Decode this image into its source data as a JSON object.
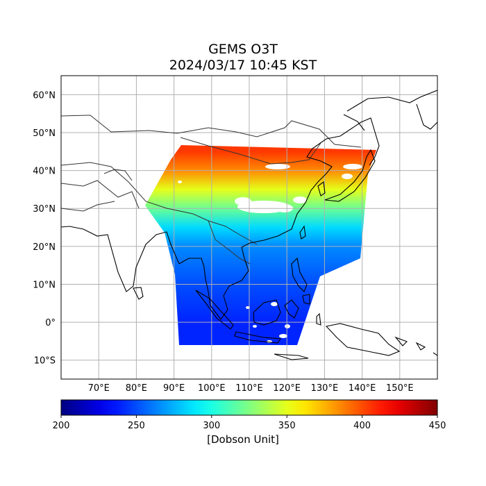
{
  "title": "GEMS O3T",
  "subtitle": "2024/03/17 10:45 KST",
  "map": {
    "lon_range": [
      60,
      160
    ],
    "lat_range": [
      -15,
      65
    ],
    "lon_ticks": [
      "70°E",
      "80°E",
      "90°E",
      "100°E",
      "110°E",
      "120°E",
      "130°E",
      "140°E",
      "150°E"
    ],
    "lat_ticks": [
      "10°S",
      "0°",
      "10°N",
      "20°N",
      "30°N",
      "40°N",
      "50°N",
      "60°N"
    ],
    "gridlines": true,
    "variable": "O3T total column ozone",
    "coastline_color": "#000000",
    "border_color": "#333333",
    "grid_color": "#b0b0b0"
  },
  "colorbar": {
    "colormap": "jet",
    "min": 200,
    "max": 450,
    "ticks": [
      "200",
      "250",
      "300",
      "350",
      "400",
      "450"
    ],
    "label": "[Dobson Unit]",
    "orientation": "horizontal"
  },
  "chart_data": {
    "type": "heatmap",
    "title": "GEMS O3T",
    "subtitle": "2024/03/17 10:45 KST",
    "xlabel": "",
    "ylabel": "",
    "xlim": [
      60,
      160
    ],
    "ylim": [
      -15,
      65
    ],
    "zlim": [
      200,
      450
    ],
    "colorbar_label": "[Dobson Unit]",
    "series": [
      {
        "lat": 45,
        "value": 405
      },
      {
        "lat": 40,
        "value": 385
      },
      {
        "lat": 35,
        "value": 350
      },
      {
        "lat": 30,
        "value": 320
      },
      {
        "lat": 25,
        "value": 285
      },
      {
        "lat": 20,
        "value": 265
      },
      {
        "lat": 10,
        "value": 250
      },
      {
        "lat": 0,
        "value": 240
      },
      {
        "lat": -5,
        "value": 240
      }
    ]
  }
}
